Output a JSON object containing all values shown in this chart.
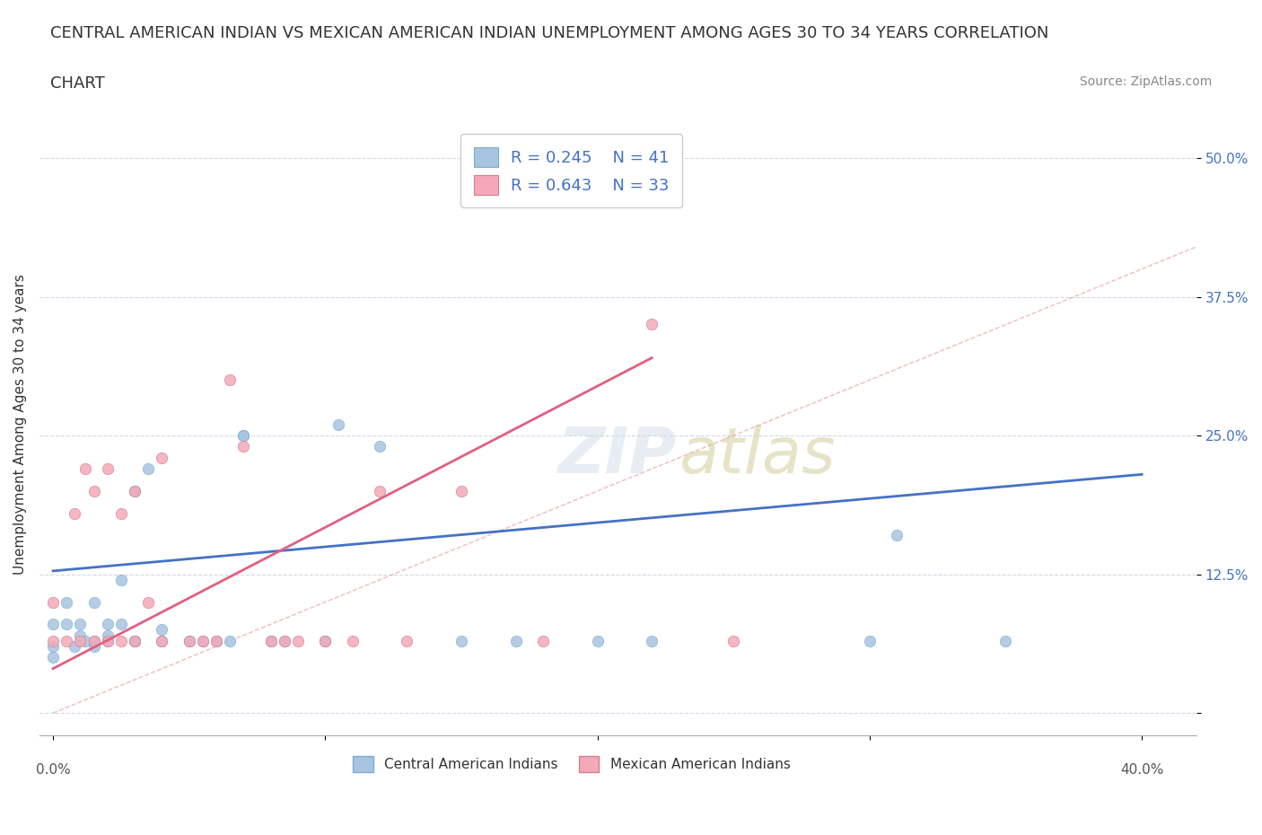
{
  "title_line1": "CENTRAL AMERICAN INDIAN VS MEXICAN AMERICAN INDIAN UNEMPLOYMENT AMONG AGES 30 TO 34 YEARS CORRELATION",
  "title_line2": "CHART",
  "source": "Source: ZipAtlas.com",
  "xlabel_bottom": "0.0%                                                                                                                          40.0%",
  "ylabel": "Unemployment Among Ages 30 to 34 years",
  "yticks": [
    0.0,
    0.125,
    0.25,
    0.375,
    0.5
  ],
  "ytick_labels": [
    "",
    "12.5%",
    "25.0%",
    "37.5%",
    "50.0%"
  ],
  "xlim": [
    -0.005,
    0.42
  ],
  "ylim": [
    -0.02,
    0.54
  ],
  "legend_R1": "R = 0.245",
  "legend_N1": "N = 41",
  "legend_R2": "R = 0.643",
  "legend_N2": "N = 33",
  "color_blue": "#a8c4e0",
  "color_pink": "#f4a8b8",
  "line_blue": "#4472c4",
  "line_pink": "#e06080",
  "line_diag": "#e8a0a0",
  "text_color": "#4472c4",
  "blue_scatter_x": [
    0.0,
    0.0,
    0.0,
    0.005,
    0.005,
    0.008,
    0.01,
    0.01,
    0.012,
    0.015,
    0.015,
    0.015,
    0.02,
    0.02,
    0.02,
    0.025,
    0.025,
    0.03,
    0.03,
    0.03,
    0.035,
    0.04,
    0.04,
    0.05,
    0.055,
    0.06,
    0.065,
    0.07,
    0.07,
    0.08,
    0.085,
    0.1,
    0.105,
    0.12,
    0.15,
    0.17,
    0.2,
    0.22,
    0.3,
    0.31,
    0.35
  ],
  "blue_scatter_y": [
    0.05,
    0.06,
    0.08,
    0.08,
    0.1,
    0.06,
    0.07,
    0.08,
    0.065,
    0.06,
    0.065,
    0.1,
    0.065,
    0.07,
    0.08,
    0.08,
    0.12,
    0.065,
    0.065,
    0.2,
    0.22,
    0.065,
    0.075,
    0.065,
    0.065,
    0.065,
    0.065,
    0.25,
    0.25,
    0.065,
    0.065,
    0.065,
    0.26,
    0.24,
    0.065,
    0.065,
    0.065,
    0.065,
    0.065,
    0.16,
    0.065
  ],
  "pink_scatter_x": [
    0.0,
    0.0,
    0.005,
    0.008,
    0.01,
    0.012,
    0.015,
    0.015,
    0.02,
    0.02,
    0.025,
    0.025,
    0.03,
    0.03,
    0.035,
    0.04,
    0.04,
    0.05,
    0.055,
    0.06,
    0.065,
    0.07,
    0.08,
    0.085,
    0.09,
    0.1,
    0.11,
    0.12,
    0.13,
    0.15,
    0.18,
    0.22,
    0.25
  ],
  "pink_scatter_y": [
    0.065,
    0.1,
    0.065,
    0.18,
    0.065,
    0.22,
    0.065,
    0.2,
    0.065,
    0.22,
    0.065,
    0.18,
    0.065,
    0.2,
    0.1,
    0.065,
    0.23,
    0.065,
    0.065,
    0.065,
    0.3,
    0.24,
    0.065,
    0.065,
    0.065,
    0.065,
    0.065,
    0.2,
    0.065,
    0.2,
    0.065,
    0.35,
    0.065
  ],
  "blue_line_x": [
    0.0,
    0.4
  ],
  "blue_line_y": [
    0.128,
    0.215
  ],
  "pink_line_x": [
    0.0,
    0.22
  ],
  "pink_line_y": [
    0.04,
    0.32
  ],
  "watermark": "ZIPatlas",
  "background_color": "#ffffff",
  "gridline_color": "#d0d8e8",
  "title_fontsize": 13,
  "axis_label_fontsize": 11,
  "tick_fontsize": 11
}
